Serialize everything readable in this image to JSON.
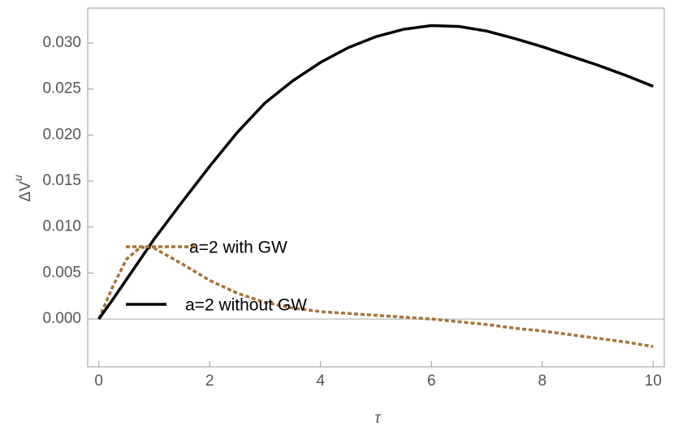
{
  "chart_data": {
    "type": "line",
    "xlabel": "τ",
    "ylabel": {
      "base": "ΔV",
      "sup": "u"
    },
    "x": [
      0,
      0.25,
      0.5,
      0.75,
      1,
      1.5,
      2,
      2.5,
      3,
      3.5,
      4,
      4.5,
      5,
      5.5,
      6,
      6.5,
      7,
      7.5,
      8,
      8.5,
      9,
      9.5,
      10
    ],
    "series": [
      {
        "name": "a=2 with GW",
        "color": "#a5733a",
        "style": "dotted",
        "values": [
          0,
          0.0035,
          0.0065,
          0.0078,
          0.0077,
          0.006,
          0.0042,
          0.0028,
          0.0018,
          0.0012,
          0.0008,
          0.0006,
          0.0004,
          0.0002,
          0,
          -0.0003,
          -0.0006,
          -0.001,
          -0.0013,
          -0.0017,
          -0.0021,
          -0.0025,
          -0.003
        ]
      },
      {
        "name": "a=2 without GW",
        "color": "#000000",
        "style": "solid",
        "values": [
          0,
          0.0021,
          0.0043,
          0.0065,
          0.0087,
          0.0127,
          0.0166,
          0.0203,
          0.0235,
          0.0259,
          0.0279,
          0.0295,
          0.0307,
          0.0315,
          0.0319,
          0.0318,
          0.0313,
          0.0305,
          0.0296,
          0.0286,
          0.0276,
          0.0265,
          0.0253
        ]
      }
    ],
    "xlim": [
      -0.2,
      10.2
    ],
    "ylim": [
      -0.0052,
      0.0338
    ],
    "xticks": [
      0,
      2,
      4,
      6,
      8,
      10
    ],
    "yticks": [
      {
        "value": 0,
        "label": "0.000"
      },
      {
        "value": 0.005,
        "label": "0.005"
      },
      {
        "value": 0.01,
        "label": "0.010"
      },
      {
        "value": 0.015,
        "label": "0.015"
      },
      {
        "value": 0.02,
        "label": "0.020"
      },
      {
        "value": 0.025,
        "label": "0.025"
      },
      {
        "value": 0.03,
        "label": "0.030"
      }
    ]
  }
}
